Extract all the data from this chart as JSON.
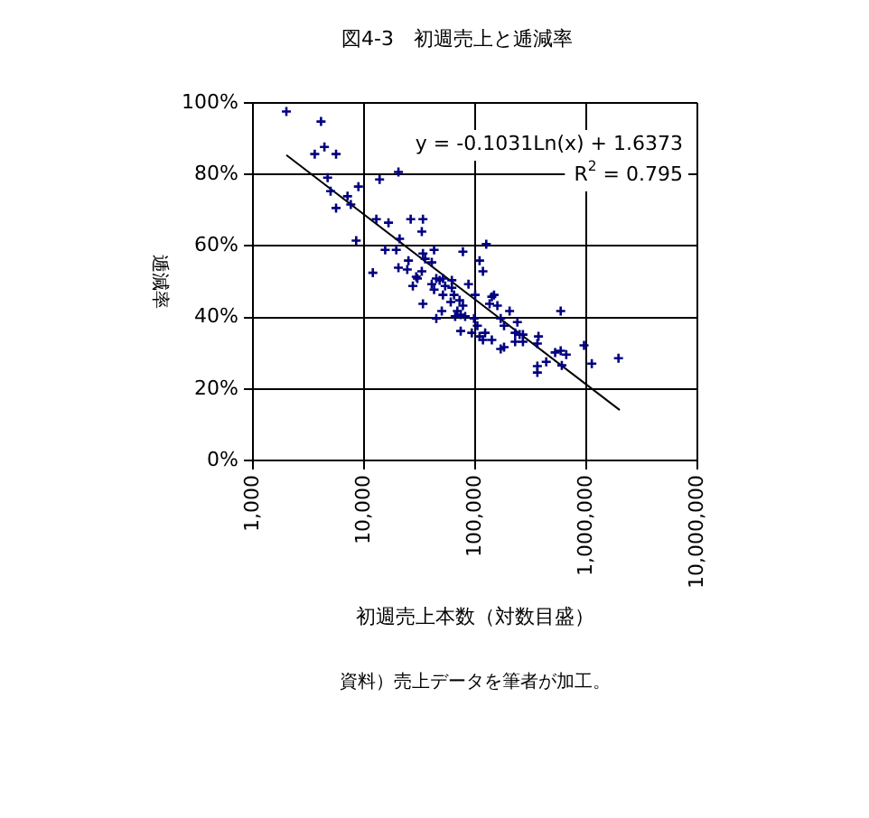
{
  "chart_data": {
    "type": "scatter",
    "title": "図4-3　初週売上と逓減率",
    "xlabel": "初週売上本数（対数目盛）",
    "ylabel": "逓減率",
    "annotations": [
      "y = -0.1031Ln(x) + 1.6373",
      "R$^{2}$ = 0.795",
      "資料）売上データを筆者が加工。"
    ],
    "log": "x",
    "grid": true,
    "legend": false,
    "xlim": [
      1000,
      10000000
    ],
    "xticks": [
      {
        "value": 1000,
        "label": "1,000"
      },
      {
        "value": 10000,
        "label": "10,000"
      },
      {
        "value": 100000,
        "label": "100,000"
      },
      {
        "value": 1000000,
        "label": "1,000,000"
      },
      {
        "value": 10000000,
        "label": "10,000,000"
      }
    ],
    "ylim": [
      0,
      100
    ],
    "yticks": [
      {
        "value": 0,
        "label": "0%"
      },
      {
        "value": 20,
        "label": "20%"
      },
      {
        "value": 40,
        "label": "40%"
      },
      {
        "value": 60,
        "label": "60%"
      },
      {
        "value": 80,
        "label": "80%"
      },
      {
        "value": 100,
        "label": "100%"
      }
    ],
    "series": [
      {
        "color": "#000080",
        "marker": "cross",
        "x": [
          2000,
          4100,
          3600,
          4400,
          5600,
          4700,
          13800,
          20400,
          5000,
          7100,
          8900,
          7600,
          5600,
          8500,
          12900,
          16600,
          26300,
          33900,
          33100,
          20900,
          12000,
          15500,
          19500,
          25100,
          20400,
          24500,
          33900,
          35500,
          42700,
          40700,
          33100,
          29500,
          30200,
          27500,
          40700,
          44700,
          51300,
          47900,
          42700,
          53700,
          61700,
          61700,
          51300,
          64600,
          77600,
          87100,
          33900,
          50100,
          60300,
          72400,
          77600,
          69200,
          74100,
          66100,
          81300,
          44700,
          100000,
          109600,
          117500,
          97700,
          104700,
          74100,
          93300,
          109600,
          117500,
          123000,
          125900,
          134900,
          141300,
          147900,
          158500,
          204200,
          169800,
          239900,
          182000,
          141300,
          169800,
          182000,
          229100,
          251200,
          269200,
          229100,
          269200,
          371500,
          363100,
          436500,
          363100,
          363100,
          524800,
          588800,
          660700,
          588800,
          602600,
          955000,
          1122000,
          1949800
        ],
        "values": [
          97.6,
          94.8,
          85.7,
          87.7,
          85.7,
          79.1,
          78.6,
          80.7,
          75.3,
          73.9,
          76.6,
          71.6,
          70.6,
          61.5,
          67.5,
          66.5,
          67.5,
          67.5,
          64.0,
          62.0,
          52.5,
          58.9,
          58.9,
          55.9,
          53.9,
          53.4,
          57.9,
          56.4,
          58.9,
          55.4,
          52.9,
          51.4,
          50.9,
          48.8,
          49.3,
          50.9,
          50.9,
          50.4,
          47.8,
          48.8,
          50.4,
          48.3,
          46.3,
          46.3,
          58.4,
          49.3,
          43.8,
          41.8,
          44.3,
          44.8,
          43.3,
          41.8,
          40.8,
          40.3,
          40.3,
          39.7,
          46.3,
          55.9,
          52.9,
          39.7,
          37.7,
          36.2,
          35.7,
          34.7,
          33.7,
          35.7,
          60.5,
          43.8,
          45.8,
          46.3,
          43.3,
          41.8,
          39.7,
          38.7,
          37.7,
          33.7,
          31.2,
          31.7,
          35.7,
          35.2,
          35.2,
          33.2,
          33.2,
          34.7,
          32.7,
          27.6,
          26.4,
          24.6,
          30.2,
          30.7,
          29.6,
          41.8,
          26.6,
          32.2,
          27.1,
          28.6
        ]
      },
      {
        "type": "line",
        "marker": "none",
        "color": "#000000",
        "x": [
          2000,
          2000000
        ],
        "values": [
          85.4,
          14.1
        ]
      }
    ]
  }
}
